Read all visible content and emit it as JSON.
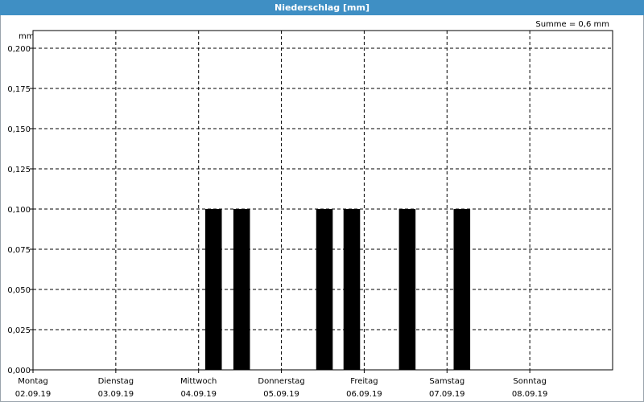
{
  "window": {
    "title": "Niederschlag [mm]"
  },
  "summary": {
    "total_label": "Summe = 0,6 mm"
  },
  "chart_data": {
    "type": "bar",
    "ylabel": "mm",
    "ylim": [
      0,
      0.2
    ],
    "y_ticks": [
      "0,000",
      "0,025",
      "0,050",
      "0,075",
      "0,100",
      "0,125",
      "0,150",
      "0,175",
      "0,200"
    ],
    "grid": true,
    "x_ticks": [
      {
        "day": "Montag",
        "date": "02.09.19"
      },
      {
        "day": "Dienstag",
        "date": "03.09.19"
      },
      {
        "day": "Mittwoch",
        "date": "04.09.19"
      },
      {
        "day": "Donnerstag",
        "date": "05.09.19"
      },
      {
        "day": "Freitag",
        "date": "06.09.19"
      },
      {
        "day": "Samstag",
        "date": "07.09.19"
      },
      {
        "day": "Sonntag",
        "date": "08.09.19"
      }
    ],
    "x_range_days": [
      0,
      7
    ],
    "bar_color": "#000000",
    "bars": [
      {
        "day_offset": 2.08,
        "value": 0.1
      },
      {
        "day_offset": 2.42,
        "value": 0.1
      },
      {
        "day_offset": 3.42,
        "value": 0.1
      },
      {
        "day_offset": 3.75,
        "value": 0.1
      },
      {
        "day_offset": 4.42,
        "value": 0.1
      },
      {
        "day_offset": 5.08,
        "value": 0.1
      }
    ]
  }
}
